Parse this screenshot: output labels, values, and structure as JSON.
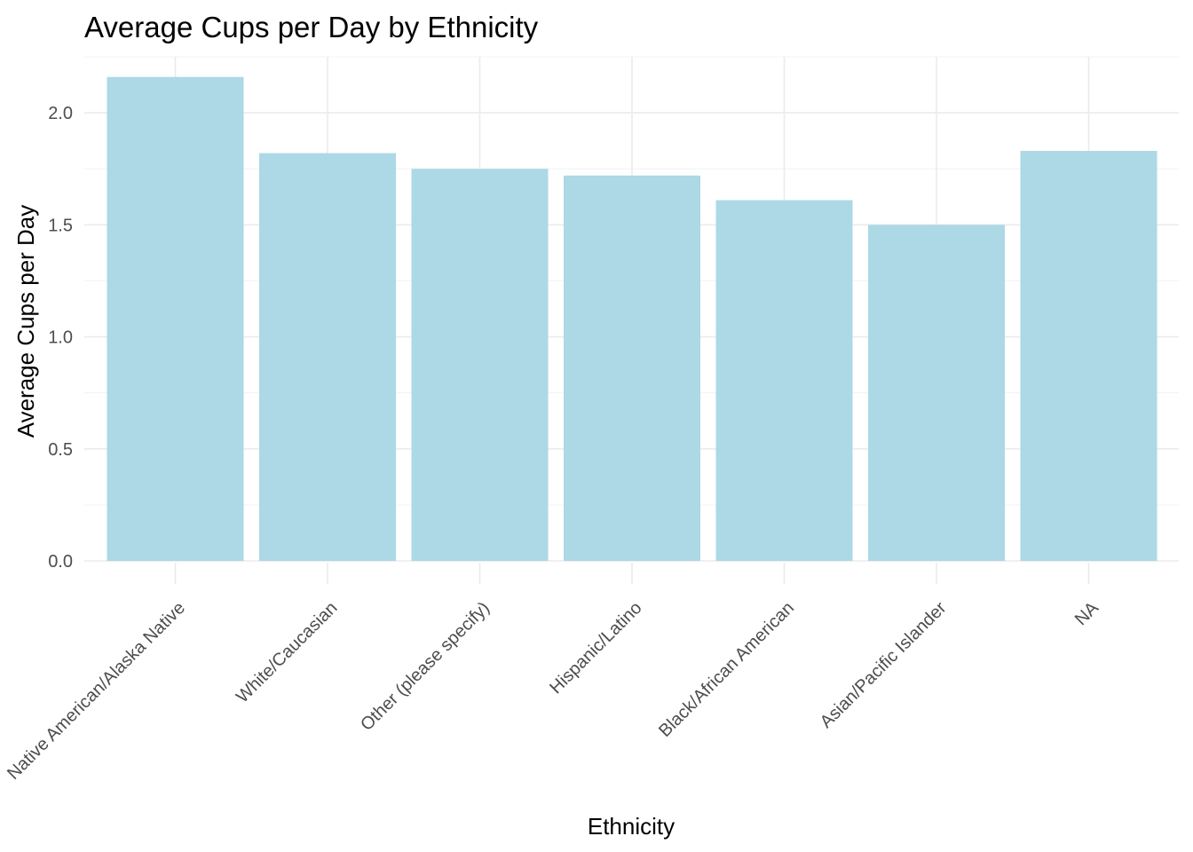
{
  "chart_data": {
    "type": "bar",
    "title": "Average Cups per Day by Ethnicity",
    "xlabel": "Ethnicity",
    "ylabel": "Average Cups per Day",
    "categories": [
      "Native American/Alaska Native",
      "White/Caucasian",
      "Other (please specify)",
      "Hispanic/Latino",
      "Black/African American",
      "Asian/Pacific Islander",
      "NA"
    ],
    "values": [
      2.16,
      1.82,
      1.75,
      1.72,
      1.61,
      1.5,
      1.83
    ],
    "ylim": [
      0,
      2.25
    ],
    "yticks": [
      0.0,
      0.5,
      1.0,
      1.5,
      2.0
    ],
    "ytick_labels": [
      "0.0",
      "0.5",
      "1.0",
      "1.5",
      "2.0"
    ],
    "bar_color": "#add8e6",
    "grid": true,
    "legend": "none"
  }
}
